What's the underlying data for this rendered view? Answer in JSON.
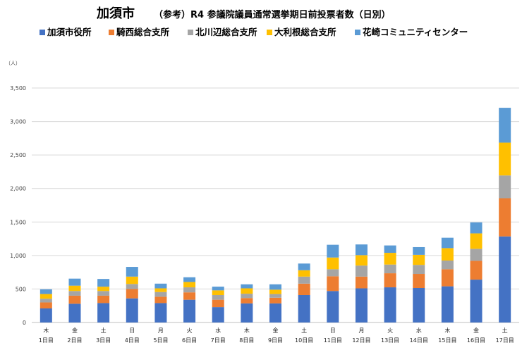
{
  "chart_data": {
    "type": "bar",
    "stacked": true,
    "title": "加須市",
    "subtitle": "（参考）R4 参議院議員通常選挙期日前投票者数（日別）",
    "unit_label": "（人）",
    "ylim": [
      0,
      3500
    ],
    "yticks": [
      "0",
      "500",
      "1,000",
      "1,500",
      "2,000",
      "2,500",
      "3,000",
      "3,500"
    ],
    "ytick_values": [
      0,
      500,
      1000,
      1500,
      2000,
      2500,
      3000,
      3500
    ],
    "grid": true,
    "legend_position": "top",
    "weekdays": [
      "木",
      "金",
      "土",
      "日",
      "月",
      "火",
      "水",
      "木",
      "金",
      "土",
      "日",
      "月",
      "火",
      "水",
      "木",
      "金",
      "土"
    ],
    "categories": [
      "1日目",
      "2日目",
      "3日目",
      "4日目",
      "5日目",
      "6日目",
      "7日目",
      "8日目",
      "9日目",
      "10日目",
      "11日目",
      "12日目",
      "13日目",
      "14日目",
      "15日目",
      "16日目",
      "17日目"
    ],
    "series": [
      {
        "name": "加須市役所",
        "color": "#4472C4",
        "values": [
          210,
          280,
          290,
          360,
          290,
          340,
          230,
          285,
          285,
          410,
          470,
          510,
          525,
          515,
          540,
          640,
          1285
        ]
      },
      {
        "name": "騎西総合支所",
        "color": "#ED7D31",
        "values": [
          90,
          120,
          110,
          140,
          95,
          110,
          110,
          80,
          85,
          170,
          220,
          175,
          210,
          210,
          255,
          280,
          570
        ]
      },
      {
        "name": "北川辺総合支所",
        "color": "#A5A5A5",
        "values": [
          55,
          70,
          70,
          75,
          70,
          75,
          70,
          65,
          55,
          105,
          105,
          165,
          130,
          135,
          130,
          180,
          340
        ]
      },
      {
        "name": "大利根総合支所",
        "color": "#FFC000",
        "values": [
          70,
          80,
          65,
          110,
          55,
          80,
          70,
          80,
          65,
          95,
          175,
          155,
          175,
          150,
          185,
          230,
          490
        ]
      },
      {
        "name": "花崎コミュニティセンター",
        "color": "#5B9BD5",
        "values": [
          70,
          105,
          115,
          145,
          70,
          70,
          55,
          60,
          80,
          100,
          190,
          160,
          110,
          115,
          155,
          165,
          520
        ]
      }
    ]
  }
}
